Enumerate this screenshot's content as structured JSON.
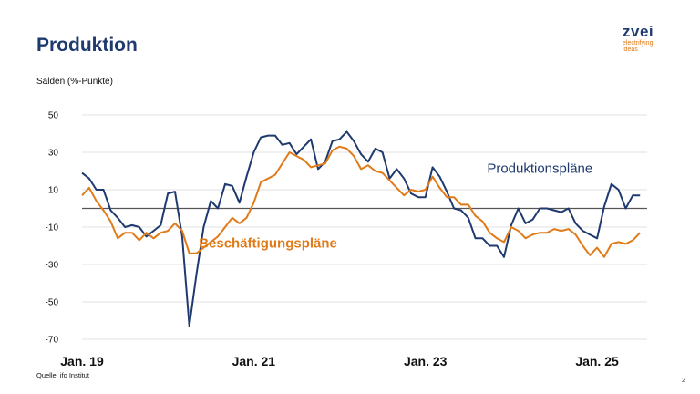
{
  "header": {
    "title": "Produktion",
    "unit_label": "Salden (%-Punkte)"
  },
  "logo": {
    "wordmark": "zvei",
    "tagline_1": "electrifying",
    "tagline_2": "ideas"
  },
  "footer": {
    "source": "Quelle: ifo Institut",
    "page_number": "2"
  },
  "colors": {
    "navy": "#1f3a6e",
    "orange": "#e07b1a",
    "zero_line": "#555555",
    "grid": "#d9d9d9"
  },
  "chart_data": {
    "type": "line",
    "ylim": [
      -70,
      50
    ],
    "yticks": [
      50,
      30,
      10,
      -10,
      -30,
      -50,
      -70
    ],
    "x_start": "Jan. 19",
    "x_end_index": 79,
    "xticks": [
      {
        "index": 0,
        "label": "Jan. 19"
      },
      {
        "index": 24,
        "label": "Jan. 21"
      },
      {
        "index": 48,
        "label": "Jan. 23"
      },
      {
        "index": 72,
        "label": "Jan. 25"
      }
    ],
    "grid": true,
    "series": [
      {
        "name": "Produktionspläne",
        "color": "#1f3a6e",
        "values": [
          19,
          16,
          10,
          10,
          -1,
          -5,
          -10,
          -9,
          -10,
          -15,
          -12,
          -9,
          8,
          9,
          -15,
          -63,
          -35,
          -10,
          4,
          0,
          13,
          12,
          3,
          17,
          30,
          38,
          39,
          39,
          34,
          35,
          29,
          33,
          37,
          21,
          25,
          36,
          37,
          41,
          36,
          29,
          25,
          32,
          30,
          16,
          21,
          16,
          8,
          6,
          6,
          22,
          17,
          9,
          0,
          -1,
          -5,
          -16,
          -16,
          -20,
          -20,
          -26,
          -9,
          0,
          -8,
          -6,
          0,
          0,
          -1,
          -2,
          0,
          -8,
          -12,
          -14,
          -16,
          1,
          13,
          10,
          0,
          7,
          7
        ],
        "label_anchor_index": 64,
        "label_anchor_value": 19
      },
      {
        "name": "Beschäftigungspläne",
        "color": "#e07b1a",
        "values": [
          7,
          11,
          4,
          -1,
          -7,
          -16,
          -13,
          -13,
          -17,
          -13,
          -16,
          -13,
          -12,
          -8,
          -12,
          -24,
          -24,
          -21,
          -18,
          -15,
          -10,
          -5,
          -8,
          -5,
          3,
          14,
          16,
          18,
          24,
          30,
          28,
          26,
          22,
          23,
          24,
          31,
          33,
          32,
          28,
          21,
          23,
          20,
          19,
          15,
          11,
          7,
          10,
          9,
          10,
          17,
          11,
          6,
          6,
          2,
          2,
          -4,
          -7,
          -13,
          -16,
          -18,
          -10,
          -12,
          -16,
          -14,
          -13,
          -13,
          -11,
          -12,
          -11,
          -14,
          -20,
          -25,
          -21,
          -26,
          -19,
          -18,
          -19,
          -17,
          -13
        ],
        "label_anchor_index": 26,
        "label_anchor_value": -21
      }
    ]
  }
}
